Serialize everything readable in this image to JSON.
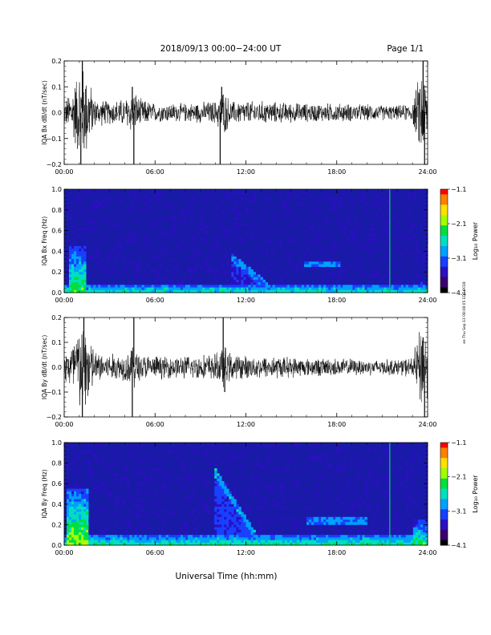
{
  "header": {
    "title": "2018/09/13  00:00−24:00 UT",
    "page": "Page 1/1"
  },
  "xlabel": "Universal Time (hh:mm)",
  "side_note": "ee Thu Sep 13 08:08:05 EDT 2018",
  "colors": {
    "trace": "#000000",
    "spec_background": "#1a1aa8",
    "spec_lines": "#00c060"
  },
  "colormap": [
    "#000000",
    "#3a006e",
    "#2a10c0",
    "#1840ff",
    "#00a0ff",
    "#00e0c0",
    "#00e040",
    "#a0ff00",
    "#ffe000",
    "#ff8000",
    "#ff0000"
  ],
  "chart_data": [
    {
      "type": "line",
      "name": "bx-derivative",
      "ylabel": "IQA Bx dB/dt (nT/sec)",
      "xlim": [
        0,
        24
      ],
      "ylim": [
        -0.2,
        0.2
      ],
      "x_ticks": [
        "00:00",
        "06:00",
        "12:00",
        "18:00",
        "24:00"
      ],
      "y_ticks": [
        "0.2",
        "0.1",
        "0.0",
        "−0.1",
        "−0.2"
      ],
      "envelope": {
        "hours": [
          0,
          0.5,
          1,
          1.4,
          2,
          3,
          4,
          4.6,
          5,
          6,
          8,
          10,
          10.5,
          11,
          12,
          13,
          14,
          16,
          18,
          20,
          22,
          23,
          23.6,
          24
        ],
        "amplitude": [
          0.05,
          0.1,
          0.2,
          0.2,
          0.06,
          0.05,
          0.06,
          0.1,
          0.06,
          0.04,
          0.04,
          0.05,
          0.1,
          0.05,
          0.05,
          0.05,
          0.045,
          0.04,
          0.04,
          0.035,
          0.03,
          0.04,
          0.2,
          0.12
        ]
      },
      "spikes": [
        {
          "hour": 1.2,
          "value": 0.2
        },
        {
          "hour": 1.1,
          "value": -0.2
        },
        {
          "hour": 4.6,
          "value": -0.2
        },
        {
          "hour": 4.5,
          "value": 0.1
        },
        {
          "hour": 10.3,
          "value": -0.2
        },
        {
          "hour": 10.4,
          "value": 0.1
        },
        {
          "hour": 23.8,
          "value": -0.2
        },
        {
          "hour": 23.7,
          "value": 0.2
        }
      ]
    },
    {
      "type": "heatmap",
      "name": "bx-spectrogram",
      "ylabel": "IQA Bx Freq (Hz)",
      "xlim": [
        0,
        24
      ],
      "ylim": [
        0,
        1.0
      ],
      "x_ticks": [
        "00:00",
        "06:00",
        "12:00",
        "18:00",
        "24:00"
      ],
      "y_ticks": [
        "1.0",
        "0.8",
        "0.6",
        "0.4",
        "0.2",
        "0.0"
      ],
      "colorbar": {
        "label": "Log₁₀ Power",
        "ticks": [
          "−1.1",
          "−2.1",
          "−3.1",
          "−4.1"
        ],
        "range": [
          -4.1,
          -1.1
        ]
      },
      "features": [
        {
          "kind": "low_freq_band",
          "max_freq": 0.08,
          "level": -2.5
        },
        {
          "kind": "burst",
          "hour_start": 0.3,
          "hour_end": 1.5,
          "max_freq": 0.45,
          "level": -2.2
        },
        {
          "kind": "arc",
          "hour_start": 11.0,
          "hour_end": 13.5,
          "freq_start": 0.05,
          "freq_end": 0.35,
          "level": -3.0
        },
        {
          "kind": "band",
          "hour_start": 15.8,
          "hour_end": 18.2,
          "freq": 0.27,
          "level": -3.0
        },
        {
          "kind": "vertical_line",
          "hour": 21.5,
          "level": -2.3
        },
        {
          "kind": "burst",
          "hour_start": 23.2,
          "hour_end": 24.0,
          "max_freq": 0.12,
          "level": -2.6
        }
      ]
    },
    {
      "type": "line",
      "name": "by-derivative",
      "ylabel": "IQA By dB/dt (nT/sec)",
      "xlim": [
        0,
        24
      ],
      "ylim": [
        -0.2,
        0.2
      ],
      "x_ticks": [
        "00:00",
        "06:00",
        "12:00",
        "18:00",
        "24:00"
      ],
      "y_ticks": [
        "0.2",
        "0.1",
        "0.0",
        "−0.1",
        "−0.2"
      ],
      "envelope": {
        "hours": [
          0,
          0.5,
          1,
          1.5,
          2,
          3,
          4,
          4.6,
          5,
          6,
          8,
          10,
          10.5,
          11,
          12,
          13,
          14,
          16,
          18,
          20,
          22,
          23,
          23.6,
          24
        ],
        "amplitude": [
          0.06,
          0.12,
          0.2,
          0.2,
          0.07,
          0.06,
          0.06,
          0.1,
          0.06,
          0.05,
          0.05,
          0.06,
          0.1,
          0.06,
          0.05,
          0.05,
          0.05,
          0.04,
          0.04,
          0.035,
          0.035,
          0.045,
          0.2,
          0.14
        ]
      },
      "spikes": [
        {
          "hour": 1.3,
          "value": 0.2
        },
        {
          "hour": 1.2,
          "value": -0.2
        },
        {
          "hour": 4.6,
          "value": 0.2
        },
        {
          "hour": 4.5,
          "value": -0.2
        },
        {
          "hour": 10.5,
          "value": 0.2
        },
        {
          "hour": 10.6,
          "value": -0.1
        },
        {
          "hour": 23.8,
          "value": -0.2
        },
        {
          "hour": 23.7,
          "value": 0.12
        }
      ]
    },
    {
      "type": "heatmap",
      "name": "by-spectrogram",
      "ylabel": "IQA By Freq (Hz)",
      "xlim": [
        0,
        24
      ],
      "ylim": [
        0,
        1.0
      ],
      "x_ticks": [
        "00:00",
        "06:00",
        "12:00",
        "18:00",
        "24:00"
      ],
      "y_ticks": [
        "1.0",
        "0.8",
        "0.6",
        "0.4",
        "0.2",
        "0.0"
      ],
      "colorbar": {
        "label": "Log₁₀ Power",
        "ticks": [
          "−1.1",
          "−2.1",
          "−3.1",
          "−4.1"
        ],
        "range": [
          -4.1,
          -1.1
        ]
      },
      "features": [
        {
          "kind": "low_freq_band",
          "max_freq": 0.1,
          "level": -2.4
        },
        {
          "kind": "burst",
          "hour_start": 0.2,
          "hour_end": 1.6,
          "max_freq": 0.55,
          "level": -2.0
        },
        {
          "kind": "arc",
          "hour_start": 10.0,
          "hour_end": 12.8,
          "freq_start": 0.05,
          "freq_end": 0.7,
          "level": -2.9
        },
        {
          "kind": "band",
          "hour_start": 16.0,
          "hour_end": 20.0,
          "freq": 0.24,
          "level": -3.0
        },
        {
          "kind": "vertical_line",
          "hour": 21.5,
          "level": -2.3
        },
        {
          "kind": "burst",
          "hour_start": 23.0,
          "hour_end": 24.0,
          "max_freq": 0.25,
          "level": -2.3
        }
      ]
    }
  ]
}
